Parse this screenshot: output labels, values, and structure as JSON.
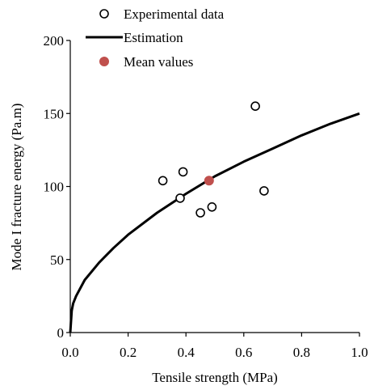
{
  "chart_data": {
    "type": "scatter",
    "xlabel": "Tensile strength (MPa)",
    "ylabel": "Mode I fracture energy (Pa.m)",
    "xlim": [
      0,
      1.0
    ],
    "ylim": [
      0,
      200
    ],
    "x_ticks": [
      0.0,
      0.2,
      0.4,
      0.6,
      0.8,
      1.0
    ],
    "x_tick_labels": [
      "0.0",
      "0.2",
      "0.4",
      "0.6",
      "0.8",
      "1.0"
    ],
    "y_ticks": [
      0,
      50,
      100,
      150,
      200
    ],
    "y_tick_labels": [
      "0",
      "50",
      "100",
      "150",
      "200"
    ],
    "grid": false,
    "legend_position": "top",
    "series": [
      {
        "name": "Experimental data",
        "kind": "scatter",
        "marker": "hollow-circle",
        "color": "#000000",
        "points": [
          {
            "x": 0.32,
            "y": 104
          },
          {
            "x": 0.38,
            "y": 92
          },
          {
            "x": 0.39,
            "y": 110
          },
          {
            "x": 0.45,
            "y": 82
          },
          {
            "x": 0.49,
            "y": 86
          },
          {
            "x": 0.64,
            "y": 155
          },
          {
            "x": 0.67,
            "y": 97
          }
        ]
      },
      {
        "name": "Estimation",
        "kind": "line",
        "color": "#000000",
        "points": [
          {
            "x": 0.0,
            "y": 0
          },
          {
            "x": 0.005,
            "y": 15
          },
          {
            "x": 0.01,
            "y": 20
          },
          {
            "x": 0.02,
            "y": 25
          },
          {
            "x": 0.05,
            "y": 36
          },
          {
            "x": 0.1,
            "y": 48
          },
          {
            "x": 0.15,
            "y": 58
          },
          {
            "x": 0.2,
            "y": 67
          },
          {
            "x": 0.3,
            "y": 82
          },
          {
            "x": 0.4,
            "y": 95
          },
          {
            "x": 0.5,
            "y": 107
          },
          {
            "x": 0.6,
            "y": 117
          },
          {
            "x": 0.7,
            "y": 126
          },
          {
            "x": 0.8,
            "y": 135
          },
          {
            "x": 0.9,
            "y": 143
          },
          {
            "x": 1.0,
            "y": 150
          }
        ]
      },
      {
        "name": "Mean values",
        "kind": "scatter",
        "marker": "filled-circle",
        "color": "#c0504d",
        "points": [
          {
            "x": 0.48,
            "y": 104
          }
        ]
      }
    ]
  }
}
